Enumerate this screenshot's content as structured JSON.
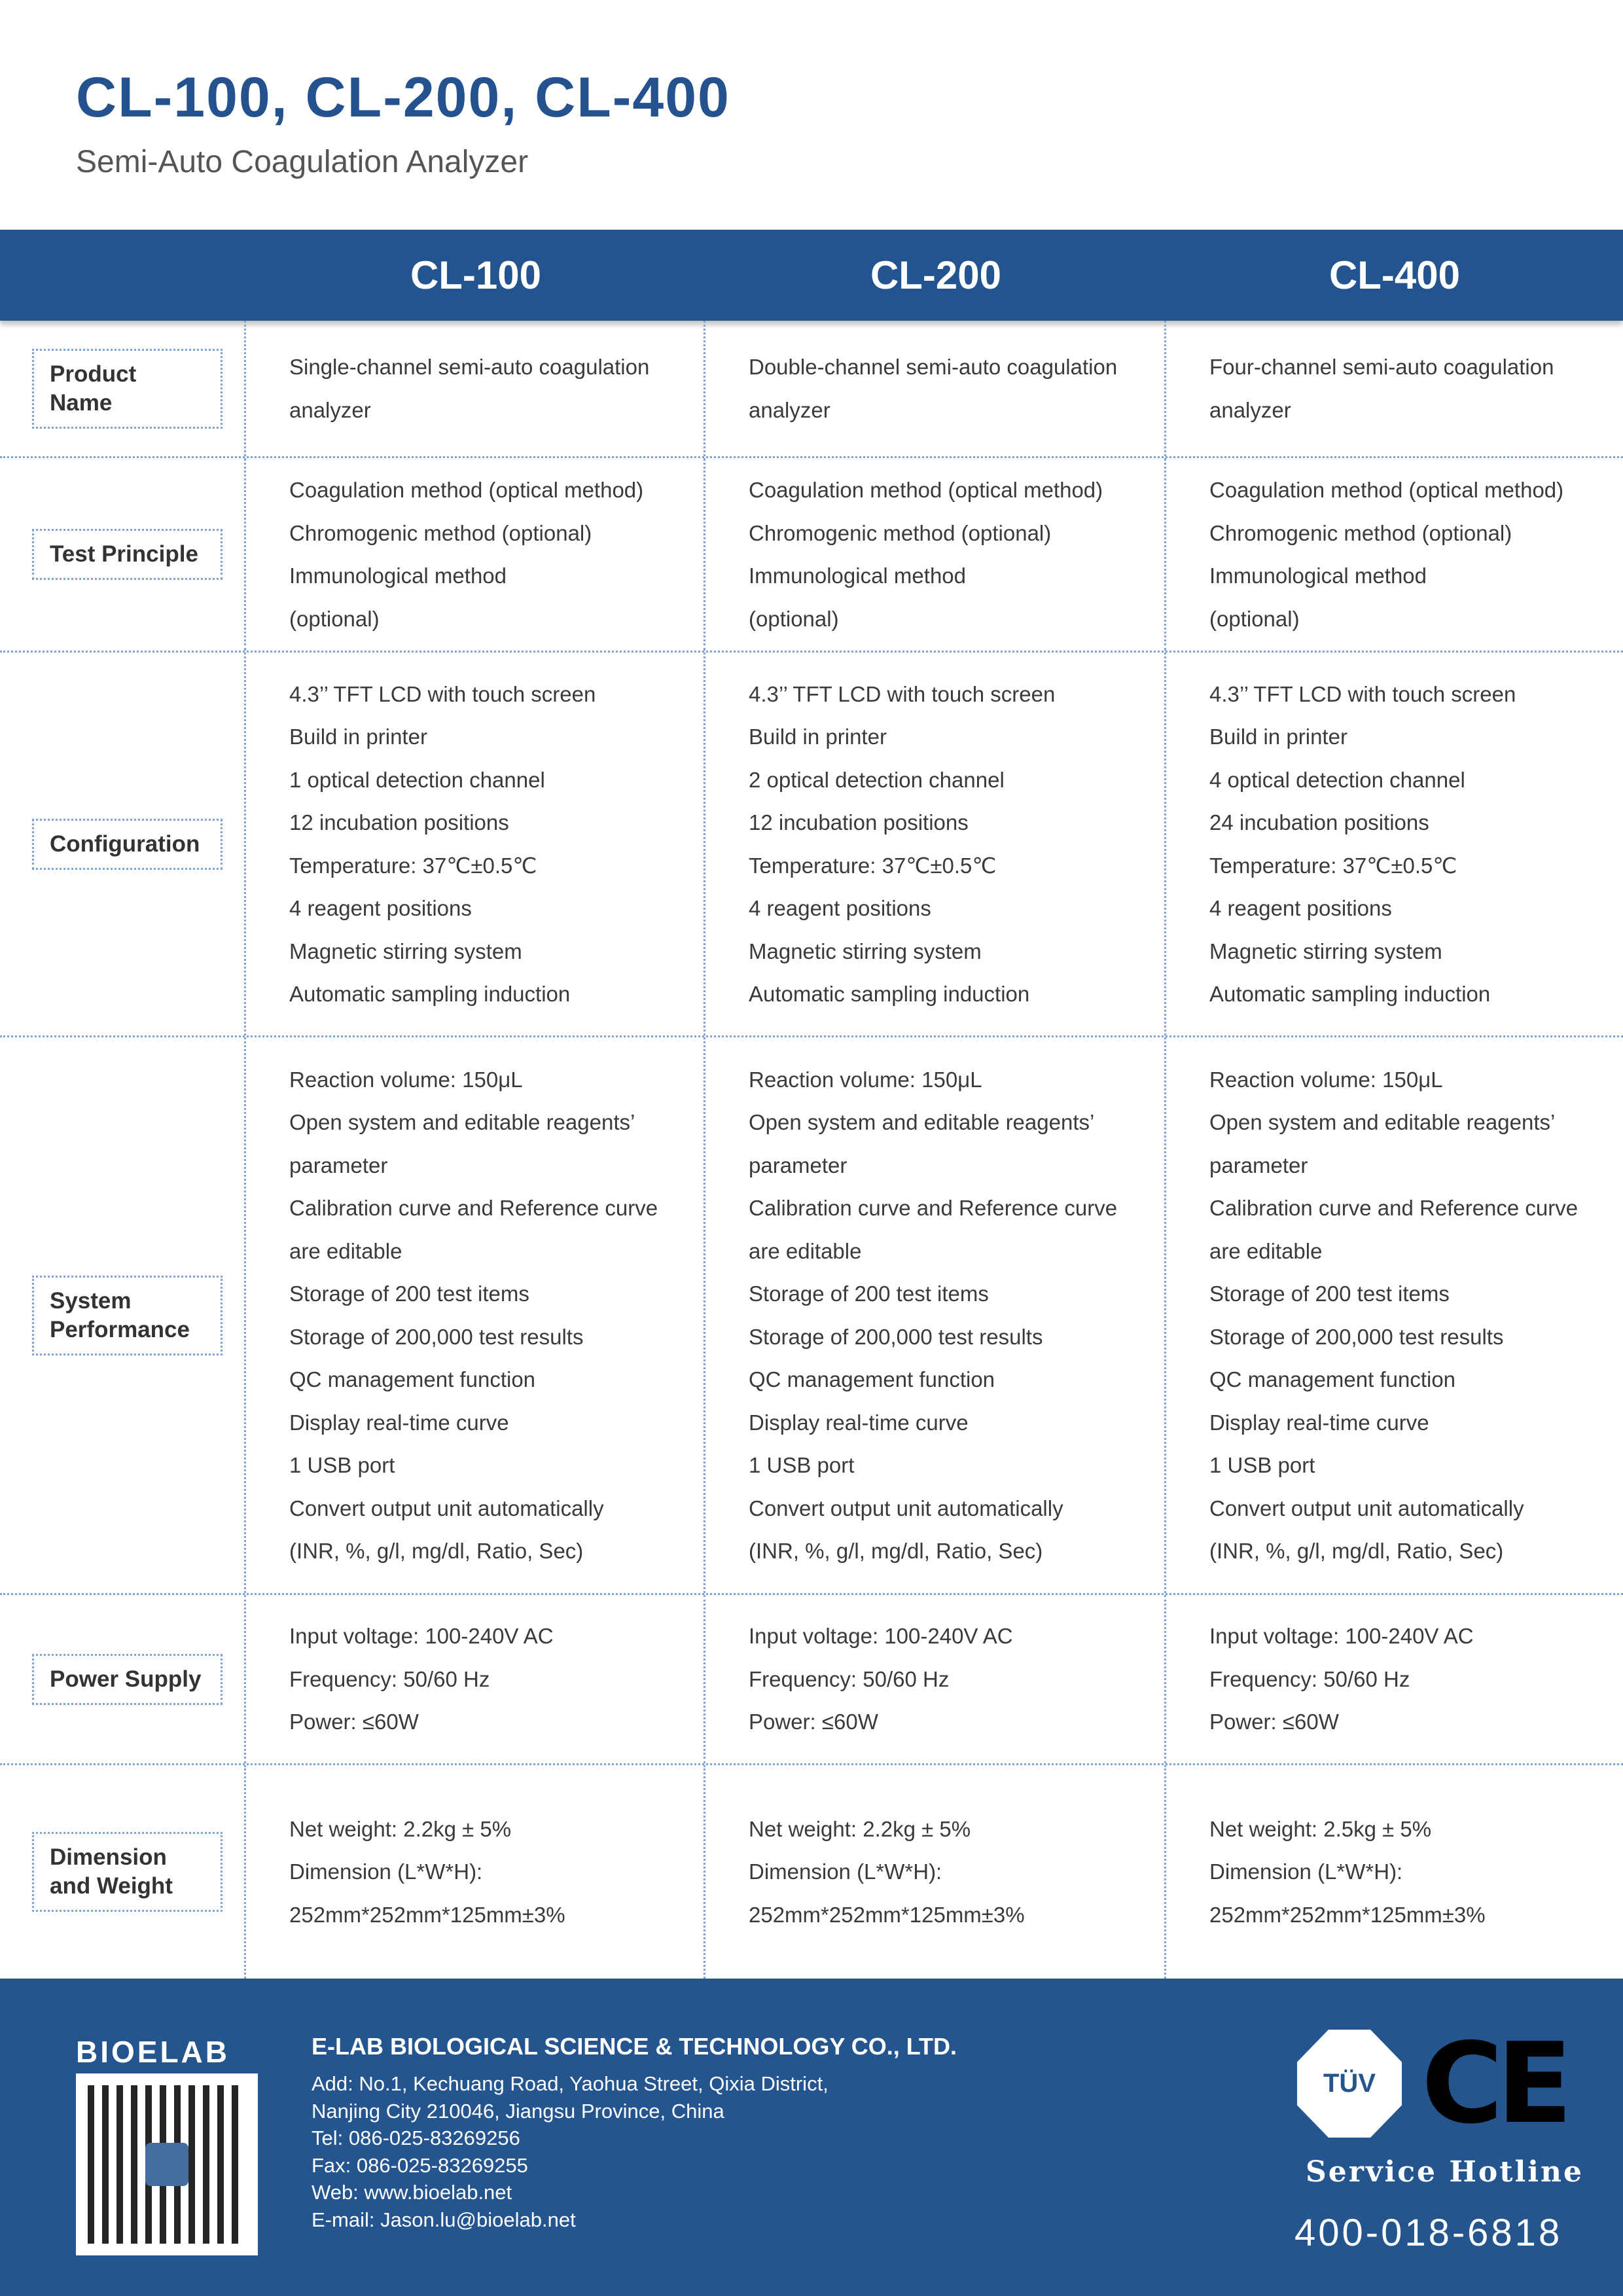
{
  "header": {
    "title": "CL-100, CL-200, CL-400",
    "subtitle": "Semi-Auto Coagulation Analyzer"
  },
  "columns": [
    "CL-100",
    "CL-200",
    "CL-400"
  ],
  "rows": [
    {
      "label": "Product Name",
      "cells": [
        [
          "Single-channel semi-auto coagulation",
          "analyzer"
        ],
        [
          "Double-channel semi-auto coagulation",
          "analyzer"
        ],
        [
          "Four-channel semi-auto coagulation",
          "analyzer"
        ]
      ]
    },
    {
      "label": "Test Principle",
      "cells": [
        [
          "Coagulation method (optical method)",
          "Chromogenic method (optional)",
          "Immunological method",
          "(optional)"
        ],
        [
          "Coagulation method (optical method)",
          "Chromogenic method (optional)",
          "Immunological method",
          "(optional)"
        ],
        [
          "Coagulation method (optical method)",
          "Chromogenic method (optional)",
          "Immunological method",
          "(optional)"
        ]
      ]
    },
    {
      "label": "Configuration",
      "cells": [
        [
          "4.3’’ TFT LCD with touch screen",
          "Build in printer",
          "1 optical detection channel",
          "12 incubation positions",
          "Temperature: 37℃±0.5℃",
          "4 reagent positions",
          "Magnetic stirring system",
          "Automatic sampling induction"
        ],
        [
          "4.3’’ TFT LCD with touch screen",
          "Build in printer",
          "2 optical detection channel",
          "12 incubation positions",
          "Temperature: 37℃±0.5℃",
          "4 reagent positions",
          "Magnetic stirring system",
          "Automatic sampling induction"
        ],
        [
          "4.3’’ TFT LCD with touch screen",
          "Build in printer",
          "4 optical detection channel",
          "24 incubation positions",
          "Temperature: 37℃±0.5℃",
          "4 reagent positions",
          "Magnetic stirring system",
          "Automatic sampling induction"
        ]
      ]
    },
    {
      "label": "System Performance",
      "cells": [
        [
          "Reaction volume: 150μL",
          "Open system and editable reagents’",
          "parameter",
          "Calibration curve and Reference curve",
          "are editable",
          "Storage of 200 test items",
          "Storage of 200,000 test results",
          "QC management function",
          "Display real-time curve",
          "1 USB port",
          "Convert output unit automatically",
          "(INR, %, g/l, mg/dl, Ratio, Sec)"
        ],
        [
          "Reaction volume: 150μL",
          "Open system and editable reagents’",
          "parameter",
          "Calibration curve and Reference curve",
          "are editable",
          "Storage of 200 test items",
          "Storage of 200,000 test results",
          "QC management function",
          "Display real-time curve",
          "1 USB port",
          "Convert output unit automatically",
          "(INR, %, g/l, mg/dl, Ratio, Sec)"
        ],
        [
          "Reaction volume: 150μL",
          "Open system and editable reagents’",
          "parameter",
          "Calibration curve and Reference curve",
          "are editable",
          "Storage of 200 test items",
          "Storage of 200,000 test results",
          "QC management function",
          "Display real-time curve",
          "1 USB port",
          "Convert output unit automatically",
          "(INR, %, g/l, mg/dl, Ratio, Sec)"
        ]
      ]
    },
    {
      "label": "Power Supply",
      "cells": [
        [
          "Input voltage: 100-240V AC",
          "Frequency: 50/60 Hz",
          "Power: ≤60W"
        ],
        [
          "Input voltage: 100-240V AC",
          "Frequency: 50/60 Hz",
          "Power: ≤60W"
        ],
        [
          "Input voltage: 100-240V AC",
          "Frequency: 50/60 Hz",
          "Power: ≤60W"
        ]
      ]
    },
    {
      "label": "Dimension and Weight",
      "cells": [
        [
          "Net weight: 2.2kg ± 5%",
          "Dimension (L*W*H):",
          "252mm*252mm*125mm±3%"
        ],
        [
          "Net weight:  2.2kg ± 5%",
          "Dimension (L*W*H):",
          "252mm*252mm*125mm±3%"
        ],
        [
          "Net weight:  2.5kg ± 5%",
          "Dimension (L*W*H):",
          "252mm*252mm*125mm±3%"
        ]
      ]
    }
  ],
  "footer": {
    "logo": "BIOELAB",
    "company": "E-LAB BIOLOGICAL SCIENCE & TECHNOLOGY CO., LTD.",
    "info": [
      "Add: No.1, Kechuang Road, Yaohua Street, Qixia District,",
      "Nanjing City 210046, Jiangsu Province, China",
      "Tel: 086-025-83269256",
      "Fax: 086-025-83269255",
      "Web: www.bioelab.net",
      "E-mail: Jason.lu@bioelab.net"
    ],
    "tuv": "TÜV",
    "ce": "CE",
    "hotline_label": "Service Hotline",
    "hotline": "400-018-6818"
  },
  "colors": {
    "brand": "#24548f",
    "border": "#7ea4d6"
  }
}
